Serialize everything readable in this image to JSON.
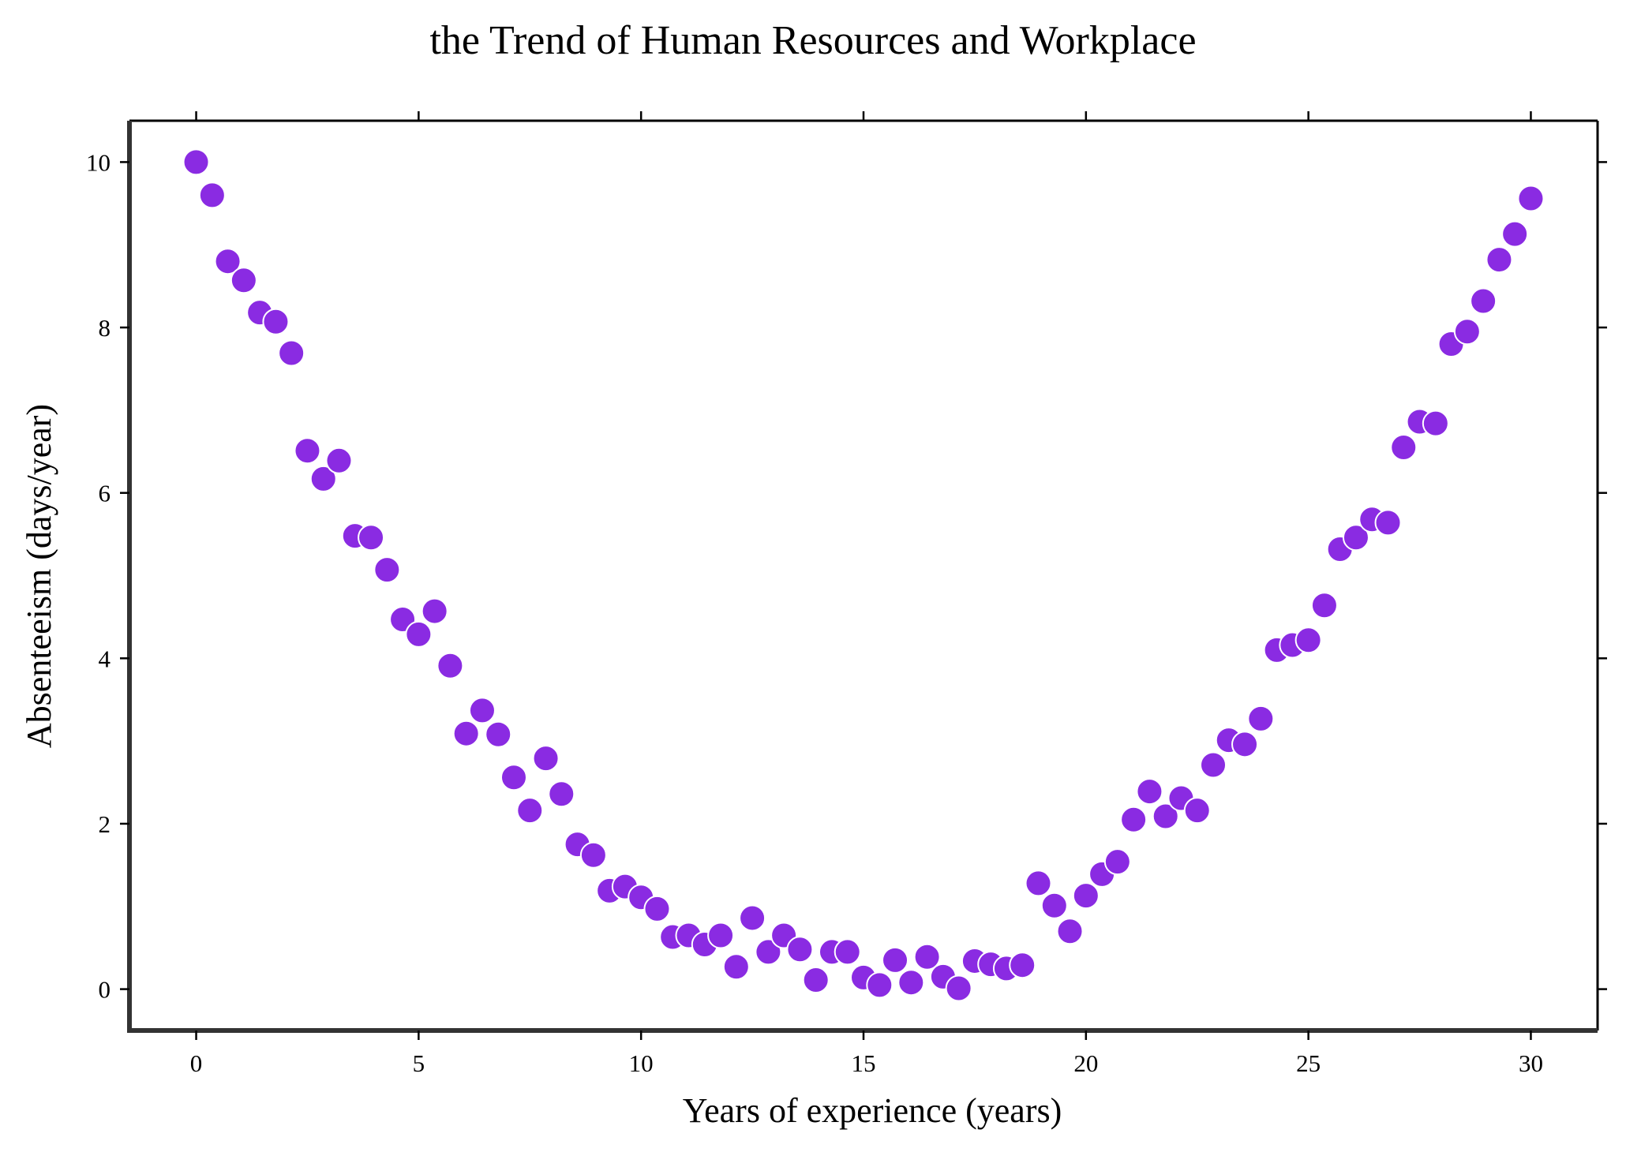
{
  "chart_data": {
    "type": "scatter",
    "title": "the Trend of Human Resources and Workplace",
    "xlabel": "Years of experience (years)",
    "ylabel": "Absenteeism (days/year)",
    "xlim": [
      -1.5,
      31.5
    ],
    "ylim": [
      -0.5,
      10.5
    ],
    "xticks": [
      0,
      5,
      10,
      15,
      20,
      25,
      30
    ],
    "yticks": [
      0,
      2,
      4,
      6,
      8,
      10
    ],
    "grid": false,
    "marker_color": "#8A2BE2",
    "x": [
      0.0,
      0.36,
      0.71,
      1.07,
      1.43,
      1.79,
      2.14,
      2.5,
      2.86,
      3.21,
      3.57,
      3.93,
      4.29,
      4.64,
      5.0,
      5.36,
      5.71,
      6.07,
      6.43,
      6.79,
      7.14,
      7.5,
      7.86,
      8.21,
      8.57,
      8.93,
      9.29,
      9.64,
      10.0,
      10.36,
      10.71,
      11.07,
      11.43,
      11.79,
      12.14,
      12.5,
      12.86,
      13.21,
      13.57,
      13.93,
      14.29,
      14.64,
      15.0,
      15.36,
      15.71,
      16.07,
      16.43,
      16.79,
      17.14,
      17.5,
      17.86,
      18.21,
      18.57,
      18.93,
      19.29,
      19.64,
      20.0,
      20.36,
      20.71,
      21.07,
      21.43,
      21.79,
      22.14,
      22.5,
      22.86,
      23.21,
      23.57,
      23.93,
      24.29,
      24.64,
      25.0,
      25.36,
      25.71,
      26.07,
      26.43,
      26.79,
      27.14,
      27.5,
      27.86,
      28.21,
      28.57,
      28.93,
      29.29,
      29.64,
      30.0
    ],
    "y": [
      10.0,
      9.6,
      8.8,
      8.57,
      8.18,
      8.07,
      7.69,
      6.51,
      6.17,
      6.39,
      5.48,
      5.46,
      5.07,
      4.47,
      4.29,
      4.57,
      3.91,
      3.09,
      3.37,
      3.08,
      2.56,
      2.16,
      2.79,
      2.36,
      1.75,
      1.62,
      1.19,
      1.24,
      1.11,
      0.97,
      0.63,
      0.65,
      0.54,
      0.65,
      0.27,
      0.86,
      0.45,
      0.65,
      0.48,
      0.11,
      0.45,
      0.45,
      0.14,
      0.05,
      0.35,
      0.08,
      0.39,
      0.15,
      0.01,
      0.34,
      0.3,
      0.25,
      0.29,
      1.28,
      1.01,
      0.7,
      1.13,
      1.39,
      1.54,
      2.05,
      2.39,
      2.09,
      2.31,
      2.16,
      2.71,
      3.01,
      2.96,
      3.27,
      4.1,
      4.16,
      4.22,
      4.64,
      5.32,
      5.46,
      5.68,
      5.64,
      6.55,
      6.86,
      6.84,
      7.8,
      7.95,
      8.32,
      8.82,
      9.13,
      9.56
    ]
  }
}
